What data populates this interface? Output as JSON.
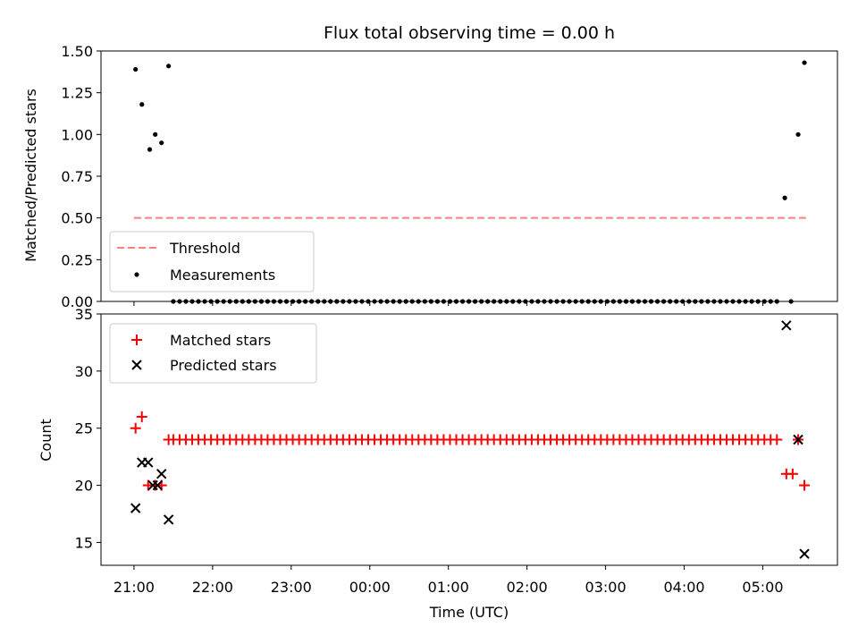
{
  "chart_data": [
    {
      "type": "scatter",
      "title": "Flux total observing time = 0.00 h",
      "ylabel": "Matched/Predicted stars",
      "xlabel": "",
      "ylim": [
        0,
        1.5
      ],
      "yticks": [
        0.0,
        0.25,
        0.5,
        0.75,
        1.0,
        1.25,
        1.5
      ],
      "ytick_labels": [
        "0.00",
        "0.25",
        "0.50",
        "0.75",
        "1.00",
        "1.25",
        "1.50"
      ],
      "x_unit": "hours since 21:00 UTC",
      "xlim": [
        -0.42,
        8.95
      ],
      "xticks": [
        0,
        1,
        2,
        3,
        4,
        5,
        6,
        7,
        8
      ],
      "legend_location": "lower-left",
      "threshold": {
        "name": "Threshold",
        "y": 0.5,
        "x_start": 0,
        "x_end": 8.55,
        "color": "#ff7f7f"
      },
      "series": [
        {
          "name": "Measurements",
          "color": "#000000",
          "points": [
            [
              0.02,
              1.39
            ],
            [
              0.1,
              1.18
            ],
            [
              0.2,
              0.91
            ],
            [
              0.27,
              1.0
            ],
            [
              0.35,
              0.95
            ],
            [
              0.44,
              1.41
            ],
            [
              8.28,
              0.62
            ],
            [
              8.45,
              1.0
            ],
            [
              8.53,
              1.43
            ]
          ],
          "zero_x": [
            0.5,
            0.58,
            0.66,
            0.74,
            0.82,
            0.9,
            0.98,
            1.06,
            1.14,
            1.22,
            1.3,
            1.38,
            1.46,
            1.54,
            1.62,
            1.7,
            1.78,
            1.86,
            1.94,
            2.02,
            2.1,
            2.18,
            2.26,
            2.34,
            2.42,
            2.5,
            2.58,
            2.66,
            2.74,
            2.82,
            2.9,
            2.98,
            3.06,
            3.14,
            3.22,
            3.3,
            3.38,
            3.46,
            3.54,
            3.62,
            3.7,
            3.78,
            3.86,
            3.94,
            4.02,
            4.1,
            4.18,
            4.26,
            4.34,
            4.42,
            4.5,
            4.58,
            4.66,
            4.74,
            4.82,
            4.9,
            4.98,
            5.06,
            5.14,
            5.22,
            5.3,
            5.38,
            5.46,
            5.54,
            5.62,
            5.7,
            5.78,
            5.86,
            5.94,
            6.02,
            6.1,
            6.18,
            6.26,
            6.34,
            6.42,
            6.5,
            6.58,
            6.66,
            6.74,
            6.82,
            6.9,
            6.98,
            7.06,
            7.14,
            7.22,
            7.3,
            7.38,
            7.46,
            7.54,
            7.62,
            7.7,
            7.78,
            7.86,
            7.94,
            8.02,
            8.1,
            8.18,
            8.36
          ]
        }
      ]
    },
    {
      "type": "scatter",
      "ylabel": "Count",
      "xlabel": "Time (UTC)",
      "ylim": [
        13,
        35
      ],
      "yticks": [
        15,
        20,
        25,
        30,
        35
      ],
      "ytick_labels": [
        "15",
        "20",
        "25",
        "30",
        "35"
      ],
      "x_unit": "hours since 21:00 UTC",
      "xlim": [
        -0.42,
        8.95
      ],
      "xticks": [
        0,
        1,
        2,
        3,
        4,
        5,
        6,
        7,
        8
      ],
      "xtick_labels": [
        "21:00",
        "22:00",
        "23:00",
        "00:00",
        "01:00",
        "02:00",
        "03:00",
        "04:00",
        "05:00"
      ],
      "legend_location": "top-left",
      "series": [
        {
          "name": "Matched stars",
          "marker": "plus",
          "color": "#ff0000",
          "points": [
            [
              0.02,
              25
            ],
            [
              0.1,
              26
            ],
            [
              0.18,
              20
            ],
            [
              0.27,
              20
            ],
            [
              0.35,
              20
            ],
            [
              8.3,
              21
            ],
            [
              8.38,
              21
            ],
            [
              8.45,
              24
            ],
            [
              8.53,
              20
            ]
          ],
          "constant_value": 24,
          "constant_x": [
            0.44,
            0.5,
            0.58,
            0.66,
            0.74,
            0.82,
            0.9,
            0.98,
            1.06,
            1.14,
            1.22,
            1.3,
            1.38,
            1.46,
            1.54,
            1.62,
            1.7,
            1.78,
            1.86,
            1.94,
            2.02,
            2.1,
            2.18,
            2.26,
            2.34,
            2.42,
            2.5,
            2.58,
            2.66,
            2.74,
            2.82,
            2.9,
            2.98,
            3.06,
            3.14,
            3.22,
            3.3,
            3.38,
            3.46,
            3.54,
            3.62,
            3.7,
            3.78,
            3.86,
            3.94,
            4.02,
            4.1,
            4.18,
            4.26,
            4.34,
            4.42,
            4.5,
            4.58,
            4.66,
            4.74,
            4.82,
            4.9,
            4.98,
            5.06,
            5.14,
            5.22,
            5.3,
            5.38,
            5.46,
            5.54,
            5.62,
            5.7,
            5.78,
            5.86,
            5.94,
            6.02,
            6.1,
            6.18,
            6.26,
            6.34,
            6.42,
            6.5,
            6.58,
            6.66,
            6.74,
            6.82,
            6.9,
            6.98,
            7.06,
            7.14,
            7.22,
            7.3,
            7.38,
            7.46,
            7.54,
            7.62,
            7.7,
            7.78,
            7.86,
            7.94,
            8.02,
            8.1,
            8.18
          ]
        },
        {
          "name": "Predicted stars",
          "marker": "x",
          "color": "#000000",
          "points": [
            [
              0.02,
              18
            ],
            [
              0.1,
              22
            ],
            [
              0.18,
              22
            ],
            [
              0.24,
              20
            ],
            [
              0.3,
              20
            ],
            [
              0.35,
              21
            ],
            [
              0.44,
              17
            ],
            [
              8.3,
              34
            ],
            [
              8.45,
              24
            ],
            [
              8.53,
              14
            ]
          ]
        }
      ]
    }
  ]
}
